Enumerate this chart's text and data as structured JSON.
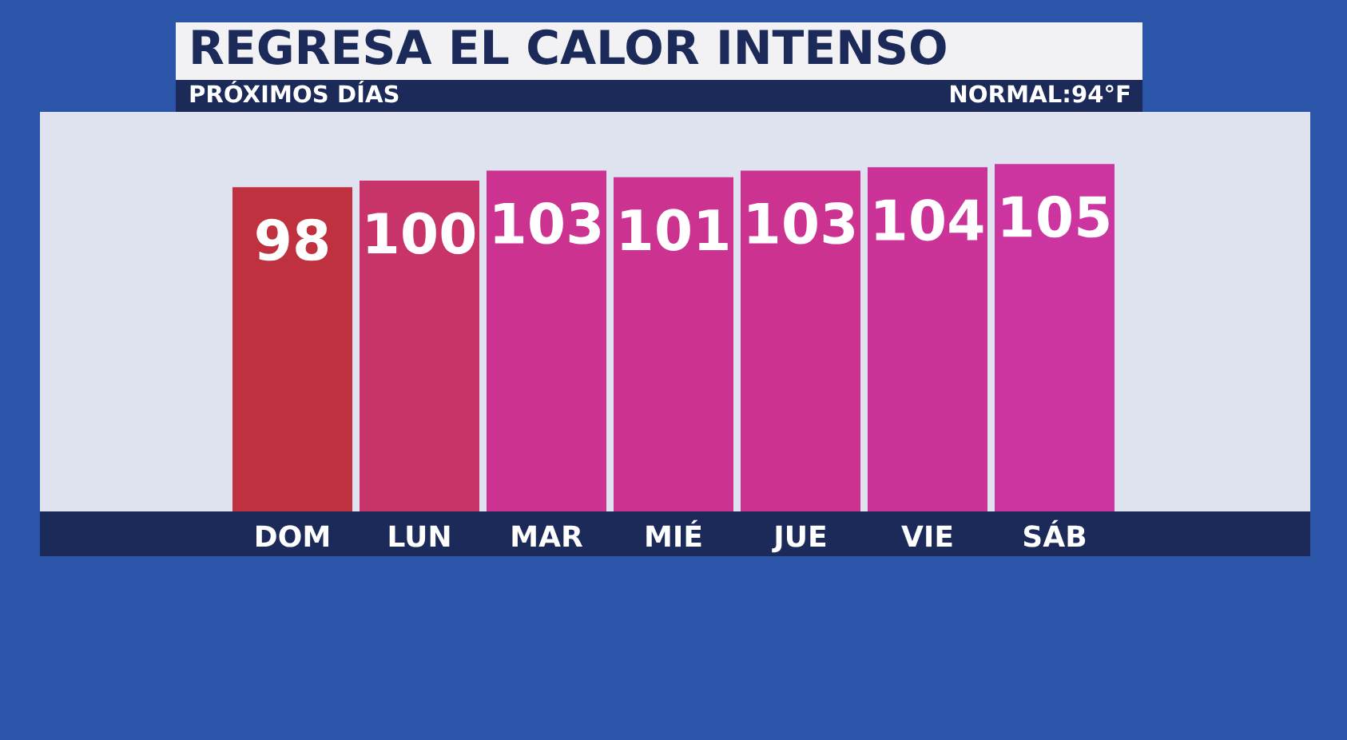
{
  "chart_data": {
    "type": "bar",
    "title": "REGRESA EL CALOR INTENSO",
    "subtitle": "PRÓXIMOS DÍAS",
    "annotations": [
      "NORMAL:94°F"
    ],
    "categories": [
      "DOM",
      "LUN",
      "MAR",
      "MIÉ",
      "JUE",
      "VIE",
      "SÁB"
    ],
    "values": [
      98,
      100,
      103,
      101,
      103,
      104,
      105
    ],
    "colors": [
      "#c0313f",
      "#c8336a",
      "#cc3390",
      "#cc3390",
      "#cc3390",
      "#cc3398",
      "#cc35a0"
    ],
    "data_labels": true
  }
}
